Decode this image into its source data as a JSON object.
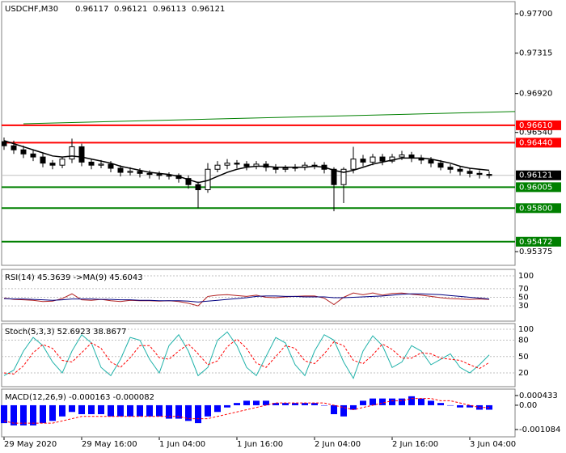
{
  "chart_data": [
    {
      "type": "candlestick",
      "title": "USDCHF,M30",
      "quote": [
        0.96117,
        0.96121,
        0.96113,
        0.96121
      ],
      "open": [
        0.9645,
        0.9641,
        0.9637,
        0.9633,
        0.963,
        0.9624,
        0.9622,
        0.9628,
        0.964,
        0.9625,
        0.9622,
        0.9623,
        0.9619,
        0.9615,
        0.9616,
        0.9614,
        0.9613,
        0.9612,
        0.9612,
        0.9609,
        0.9603,
        0.9598,
        0.9618,
        0.9622,
        0.9624,
        0.9623,
        0.9621,
        0.9623,
        0.962,
        0.9618,
        0.9619,
        0.962,
        0.9622,
        0.9622,
        0.9618,
        0.9603,
        0.9618,
        0.9628,
        0.9625,
        0.963,
        0.9626,
        0.963,
        0.9632,
        0.9629,
        0.9627,
        0.9624,
        0.962,
        0.9618,
        0.9616,
        0.9614,
        0.9613
      ],
      "high": [
        0.9649,
        0.9646,
        0.9641,
        0.9637,
        0.9634,
        0.9627,
        0.963,
        0.9648,
        0.9643,
        0.9628,
        0.9627,
        0.9626,
        0.9622,
        0.962,
        0.9619,
        0.9617,
        0.9616,
        0.9615,
        0.9614,
        0.9612,
        0.9606,
        0.9624,
        0.9626,
        0.9628,
        0.9627,
        0.9626,
        0.9626,
        0.9626,
        0.9623,
        0.9622,
        0.9623,
        0.9625,
        0.9625,
        0.9625,
        0.962,
        0.962,
        0.964,
        0.9632,
        0.9633,
        0.9633,
        0.9633,
        0.9636,
        0.9635,
        0.9632,
        0.963,
        0.9627,
        0.9623,
        0.9621,
        0.9619,
        0.9617,
        0.9616
      ],
      "low": [
        0.9637,
        0.9633,
        0.9629,
        0.9626,
        0.962,
        0.9618,
        0.9619,
        0.9624,
        0.9621,
        0.9618,
        0.9619,
        0.9615,
        0.9611,
        0.9612,
        0.961,
        0.9609,
        0.9608,
        0.9608,
        0.9605,
        0.9599,
        0.958,
        0.9595,
        0.9615,
        0.9618,
        0.9619,
        0.9617,
        0.9618,
        0.9616,
        0.9614,
        0.9615,
        0.9616,
        0.9617,
        0.9618,
        0.9614,
        0.9577,
        0.9585,
        0.9614,
        0.9621,
        0.9622,
        0.9622,
        0.9624,
        0.9627,
        0.9625,
        0.9623,
        0.962,
        0.9617,
        0.9614,
        0.9612,
        0.961,
        0.9609,
        0.9609
      ],
      "close": [
        0.9641,
        0.9637,
        0.9633,
        0.963,
        0.9624,
        0.9622,
        0.9628,
        0.964,
        0.9625,
        0.9622,
        0.9623,
        0.9619,
        0.9615,
        0.9616,
        0.9614,
        0.9613,
        0.9612,
        0.9612,
        0.9609,
        0.9603,
        0.9598,
        0.9618,
        0.9622,
        0.9624,
        0.9623,
        0.9621,
        0.9623,
        0.962,
        0.9618,
        0.9619,
        0.962,
        0.9622,
        0.9622,
        0.9618,
        0.9603,
        0.9618,
        0.9628,
        0.9625,
        0.963,
        0.9626,
        0.963,
        0.9632,
        0.9629,
        0.9627,
        0.9624,
        0.962,
        0.9618,
        0.9616,
        0.9614,
        0.9613,
        0.9612
      ],
      "ma": {
        "color": "#000000",
        "values": [
          0.9646,
          0.9643,
          0.964,
          0.9637,
          0.9634,
          0.9631,
          0.963,
          0.9631,
          0.963,
          0.9628,
          0.9626,
          0.9624,
          0.9621,
          0.9619,
          0.9617,
          0.9615,
          0.9614,
          0.9613,
          0.9611,
          0.9608,
          0.9605,
          0.9607,
          0.9611,
          0.9615,
          0.9618,
          0.962,
          0.9621,
          0.9621,
          0.962,
          0.962,
          0.962,
          0.962,
          0.9621,
          0.962,
          0.9617,
          0.9615,
          0.9617,
          0.962,
          0.9623,
          0.9625,
          0.9627,
          0.9629,
          0.9629,
          0.9629,
          0.9628,
          0.9626,
          0.9624,
          0.9621,
          0.9619,
          0.9618,
          0.9617
        ]
      },
      "trendline": {
        "x": [
          2,
          53
        ],
        "values": [
          0.96625,
          0.96745
        ],
        "color": "#008000"
      },
      "levels": [
        {
          "value": 0.9661,
          "label": "0.96610",
          "color": "#ff0000"
        },
        {
          "value": 0.9644,
          "label": "0.96440",
          "color": "#ff0000"
        },
        {
          "value": 0.96005,
          "label": "0.96005",
          "color": "#008000"
        },
        {
          "value": 0.958,
          "label": "0.95800",
          "color": "#008000"
        },
        {
          "value": 0.95472,
          "label": "0.95472",
          "color": "#008000"
        }
      ],
      "current_price": 0.96121,
      "ylim": [
        0.95241,
        0.97819
      ],
      "yticks": [
        {
          "value": 0.977,
          "label": "0.97700"
        },
        0.97315,
        {
          "value": 0.9692,
          "label": "0.96920"
        },
        {
          "value": 0.9654,
          "label": "0.96540"
        },
        0.95375
      ],
      "xticks": [
        {
          "value": 0,
          "label": "29 May 2020"
        },
        {
          "value": 8,
          "label": "29 May 16:00"
        },
        {
          "value": 16,
          "label": "1 Jun 04:00"
        },
        {
          "value": 24,
          "label": "1 Jun 16:00"
        },
        {
          "value": 32,
          "label": "2 Jun 04:00"
        },
        {
          "value": 40,
          "label": "2 Jun 16:00"
        },
        {
          "value": 48,
          "label": "3 Jun 04:00"
        }
      ]
    },
    {
      "type": "line",
      "title": "RSI(14) 45.3639  ->MA(9) 45.6043",
      "ylim": [
        -5.7,
        115.1
      ],
      "yticks": [
        100,
        70,
        50,
        30
      ],
      "series": [
        {
          "color": "#b22222",
          "dashed": false,
          "values": [
            48,
            45,
            44,
            43,
            40,
            41,
            47,
            58,
            44,
            43,
            45,
            42,
            40,
            43,
            42,
            42,
            41,
            42,
            40,
            36,
            30,
            52,
            55,
            56,
            54,
            52,
            55,
            50,
            49,
            51,
            52,
            53,
            53,
            48,
            33,
            50,
            60,
            56,
            60,
            55,
            59,
            60,
            57,
            55,
            52,
            49,
            47,
            46,
            45,
            46,
            45
          ]
        },
        {
          "color": "#000080",
          "dashed": false,
          "values": [
            47,
            46,
            46,
            45,
            44,
            43,
            44,
            46,
            46,
            46,
            45,
            45,
            44,
            44,
            43,
            43,
            42,
            42,
            42,
            41,
            39,
            41,
            43,
            45,
            47,
            49,
            52,
            53,
            53,
            52,
            52,
            51,
            51,
            51,
            49,
            49,
            50,
            51,
            52,
            53,
            55,
            57,
            58,
            58,
            57,
            56,
            54,
            52,
            50,
            48,
            46
          ]
        }
      ]
    },
    {
      "type": "line",
      "title": "Stoch(5,3,3) 52.6923 38.8677",
      "ylim": [
        -5.2,
        110.4
      ],
      "yticks": [
        100,
        80,
        50,
        20
      ],
      "series": [
        {
          "color": "#20b2aa",
          "dashed": false,
          "values": [
            15,
            25,
            60,
            85,
            70,
            40,
            20,
            60,
            90,
            75,
            30,
            15,
            45,
            85,
            80,
            45,
            20,
            70,
            90,
            60,
            15,
            30,
            80,
            95,
            70,
            30,
            15,
            50,
            85,
            75,
            35,
            15,
            60,
            90,
            80,
            40,
            10,
            60,
            88,
            70,
            30,
            40,
            70,
            60,
            35,
            45,
            55,
            30,
            20,
            35,
            53
          ]
        },
        {
          "color": "#ff0000",
          "dashed": true,
          "values": [
            20,
            18,
            33,
            57,
            72,
            65,
            43,
            40,
            57,
            75,
            65,
            40,
            30,
            48,
            70,
            70,
            48,
            45,
            60,
            73,
            55,
            35,
            42,
            68,
            82,
            65,
            38,
            30,
            50,
            70,
            65,
            42,
            37,
            55,
            77,
            70,
            43,
            37,
            53,
            73,
            63,
            47,
            47,
            57,
            55,
            47,
            45,
            43,
            35,
            28,
            39
          ]
        }
      ]
    },
    {
      "type": "macd",
      "title": "MACD(12,26,9) -0.000163 -0.000082",
      "ylim": [
        -0.00141,
        0.00072
      ],
      "yticks": [
        0.000433,
        {
          "value": 0,
          "label": "0.00"
        },
        -0.001084
      ],
      "histogram": {
        "color": "#0000ff",
        "values": [
          -0.0008,
          -0.0009,
          -0.0009,
          -0.0009,
          -0.0008,
          -0.0007,
          -0.0005,
          -0.0003,
          -0.0004,
          -0.0004,
          -0.0004,
          -0.0005,
          -0.0005,
          -0.0005,
          -0.0005,
          -0.0005,
          -0.0005,
          -0.0006,
          -0.0006,
          -0.0007,
          -0.0008,
          -0.0005,
          -0.0003,
          -0.0001,
          0.0001,
          0.0002,
          0.0002,
          0.0002,
          0.0001,
          0.0001,
          0.0001,
          0.0001,
          0.0001,
          0,
          -0.0004,
          -0.0005,
          -0.0002,
          0.0002,
          0.0003,
          0.0003,
          0.0003,
          0.0003,
          0.0004,
          0.0003,
          0.0002,
          0.0001,
          0,
          -0.0001,
          -0.0001,
          -0.0002,
          -0.0002
        ]
      },
      "signal": {
        "color": "#ff0000",
        "values": [
          -0.0007,
          -0.0008,
          -0.0008,
          -0.0008,
          -0.0008,
          -0.0008,
          -0.0007,
          -0.0006,
          -0.0005,
          -0.0005,
          -0.0005,
          -0.0005,
          -0.0005,
          -0.0005,
          -0.0005,
          -0.0005,
          -0.0005,
          -0.0005,
          -0.0005,
          -0.0006,
          -0.0006,
          -0.0006,
          -0.0005,
          -0.0004,
          -0.0003,
          -0.0002,
          -0.0001,
          0,
          0.0001,
          0.0001,
          0.0001,
          0.0001,
          0.0001,
          0.0001,
          0,
          -0.0001,
          -0.0002,
          -0.0001,
          0,
          0.0001,
          0.0002,
          0.0002,
          0.0003,
          0.0003,
          0.0003,
          0.0002,
          0.0002,
          0.0001,
          0,
          -0.0001,
          -0.0001
        ]
      }
    }
  ]
}
